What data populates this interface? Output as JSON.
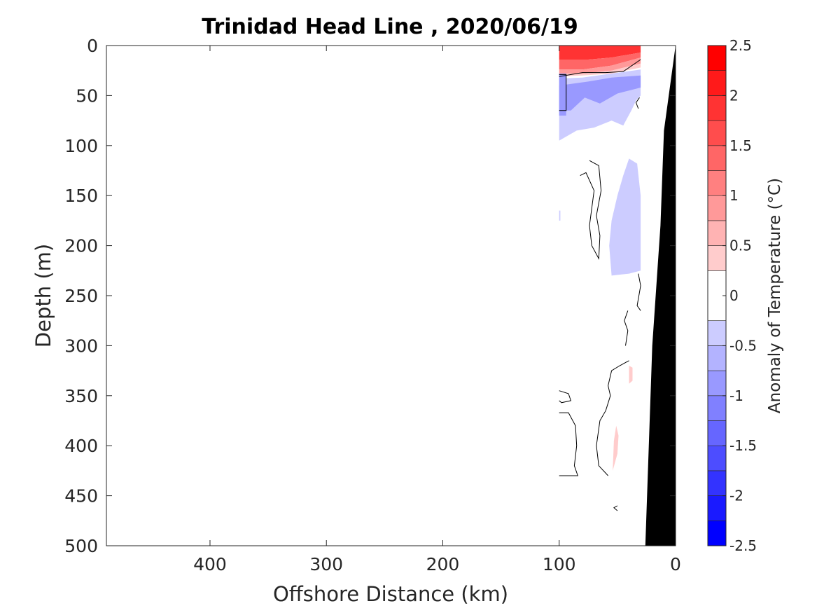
{
  "chart_data": {
    "type": "contour",
    "title": "Trinidad Head Line , 2020/06/19",
    "xlabel": "Offshore Distance (km)",
    "ylabel": "Depth (m)",
    "xlim": [
      489,
      0
    ],
    "ylim": [
      0,
      500
    ],
    "x_reversed": true,
    "y_reversed": true,
    "xticks": [
      400,
      300,
      200,
      100,
      0
    ],
    "yticks": [
      0,
      50,
      100,
      150,
      200,
      250,
      300,
      350,
      400,
      450,
      500
    ],
    "data_x_range": [
      100,
      30
    ],
    "colorbar": {
      "label": "Anomaly of Temperature (°C)",
      "range": [
        -2.5,
        2.5
      ],
      "ticks": [
        2.5,
        2,
        1.5,
        1,
        0.5,
        0,
        -0.5,
        -1,
        -1.5,
        -2,
        -2.5
      ],
      "levels": [
        -2.5,
        -2.25,
        -2,
        -1.75,
        -1.5,
        -1.25,
        -1,
        -0.75,
        -0.5,
        -0.25,
        0.25,
        0.5,
        0.75,
        1,
        1.25,
        1.5,
        1.75,
        2,
        2.25,
        2.5
      ],
      "colormap": "blue-white-red",
      "color_min": "#0000ff",
      "color_max": "#ff0000"
    },
    "bathymetry": [
      {
        "x": 0,
        "depth": 0
      },
      {
        "x": 10,
        "depth": 85
      },
      {
        "x": 13,
        "depth": 180
      },
      {
        "x": 20,
        "depth": 300
      },
      {
        "x": 26,
        "depth": 500
      }
    ],
    "filled_regions": [
      {
        "anomaly": 2.0,
        "points": [
          [
            100,
            0
          ],
          [
            30,
            0
          ],
          [
            30,
            7
          ],
          [
            55,
            12
          ],
          [
            75,
            14
          ],
          [
            100,
            14
          ]
        ]
      },
      {
        "anomaly": 1.5,
        "points": [
          [
            100,
            14
          ],
          [
            75,
            14
          ],
          [
            55,
            12
          ],
          [
            30,
            7
          ],
          [
            30,
            12
          ],
          [
            55,
            20
          ],
          [
            80,
            24
          ],
          [
            100,
            24
          ]
        ]
      },
      {
        "anomaly": 1.0,
        "points": [
          [
            100,
            24
          ],
          [
            80,
            24
          ],
          [
            55,
            20
          ],
          [
            30,
            12
          ],
          [
            30,
            18
          ],
          [
            55,
            25
          ],
          [
            80,
            28
          ],
          [
            100,
            28
          ]
        ]
      },
      {
        "anomaly": 0.5,
        "points": [
          [
            100,
            28
          ],
          [
            80,
            28
          ],
          [
            55,
            25
          ],
          [
            30,
            18
          ],
          [
            30,
            22
          ],
          [
            55,
            28
          ],
          [
            80,
            30
          ],
          [
            100,
            31
          ]
        ]
      },
      {
        "anomaly": -0.5,
        "points": [
          [
            100,
            33
          ],
          [
            80,
            32
          ],
          [
            55,
            28
          ],
          [
            30,
            24
          ],
          [
            30,
            50
          ],
          [
            34,
            55
          ],
          [
            38,
            65
          ],
          [
            45,
            80
          ],
          [
            55,
            75
          ],
          [
            70,
            82
          ],
          [
            85,
            85
          ],
          [
            100,
            95
          ]
        ]
      },
      {
        "anomaly": -1.0,
        "points": [
          [
            100,
            40
          ],
          [
            75,
            36
          ],
          [
            55,
            32
          ],
          [
            30,
            30
          ],
          [
            30,
            42
          ],
          [
            50,
            48
          ],
          [
            65,
            58
          ],
          [
            78,
            52
          ],
          [
            90,
            65
          ],
          [
            100,
            65
          ]
        ]
      },
      {
        "anomaly": -1.0,
        "points": [
          [
            100,
            28
          ],
          [
            94,
            28
          ],
          [
            94,
            70
          ],
          [
            100,
            70
          ]
        ]
      },
      {
        "anomaly": -0.5,
        "points": [
          [
            40,
            113
          ],
          [
            33,
            118
          ],
          [
            30,
            150
          ],
          [
            30,
            225
          ],
          [
            40,
            228
          ],
          [
            55,
            230
          ],
          [
            57,
            200
          ],
          [
            55,
            175
          ],
          [
            50,
            150
          ],
          [
            45,
            130
          ]
        ]
      },
      {
        "anomaly": -0.5,
        "points": [
          [
            100,
            165
          ],
          [
            99,
            165
          ],
          [
            99,
            175
          ],
          [
            100,
            175
          ]
        ]
      },
      {
        "anomaly": 0.5,
        "points": [
          [
            40,
            320
          ],
          [
            37,
            322
          ],
          [
            37,
            335
          ],
          [
            40,
            338
          ]
        ]
      },
      {
        "anomaly": 0.5,
        "points": [
          [
            51,
            380
          ],
          [
            53,
            395
          ],
          [
            54,
            425
          ],
          [
            50,
            408
          ],
          [
            49,
            390
          ]
        ]
      }
    ],
    "zero_contours": [
      [
        [
          100,
          31
        ],
        [
          80,
          27
        ],
        [
          60,
          27
        ],
        [
          45,
          26
        ],
        [
          30,
          14
        ]
      ],
      [
        [
          100,
          29
        ],
        [
          94,
          29
        ],
        [
          94,
          65
        ],
        [
          100,
          65
        ]
      ],
      [
        [
          31,
          52
        ],
        [
          34,
          57
        ],
        [
          32,
          63
        ]
      ],
      [
        [
          82,
          130
        ],
        [
          77,
          127
        ],
        [
          70,
          145
        ],
        [
          74,
          180
        ],
        [
          72,
          200
        ],
        [
          66,
          213
        ],
        [
          65,
          190
        ],
        [
          68,
          170
        ],
        [
          64,
          145
        ],
        [
          66,
          120
        ],
        [
          74,
          115
        ]
      ],
      [
        [
          32,
          228
        ],
        [
          30,
          240
        ],
        [
          33,
          260
        ],
        [
          30,
          265
        ]
      ],
      [
        [
          41,
          265
        ],
        [
          44,
          275
        ],
        [
          41,
          285
        ],
        [
          43,
          300
        ]
      ],
      [
        [
          40,
          315
        ],
        [
          48,
          320
        ],
        [
          55,
          325
        ],
        [
          58,
          340
        ],
        [
          56,
          350
        ],
        [
          60,
          365
        ],
        [
          65,
          375
        ],
        [
          68,
          400
        ],
        [
          66,
          420
        ],
        [
          58,
          430
        ]
      ],
      [
        [
          100,
          345
        ],
        [
          92,
          348
        ],
        [
          90,
          355
        ],
        [
          98,
          357
        ],
        [
          100,
          355
        ]
      ],
      [
        [
          100,
          367
        ],
        [
          92,
          367
        ],
        [
          86,
          380
        ],
        [
          85,
          400
        ],
        [
          87,
          420
        ],
        [
          84,
          430
        ],
        [
          100,
          430
        ]
      ],
      [
        [
          50,
          460
        ],
        [
          53,
          462
        ],
        [
          50,
          465
        ]
      ]
    ]
  }
}
